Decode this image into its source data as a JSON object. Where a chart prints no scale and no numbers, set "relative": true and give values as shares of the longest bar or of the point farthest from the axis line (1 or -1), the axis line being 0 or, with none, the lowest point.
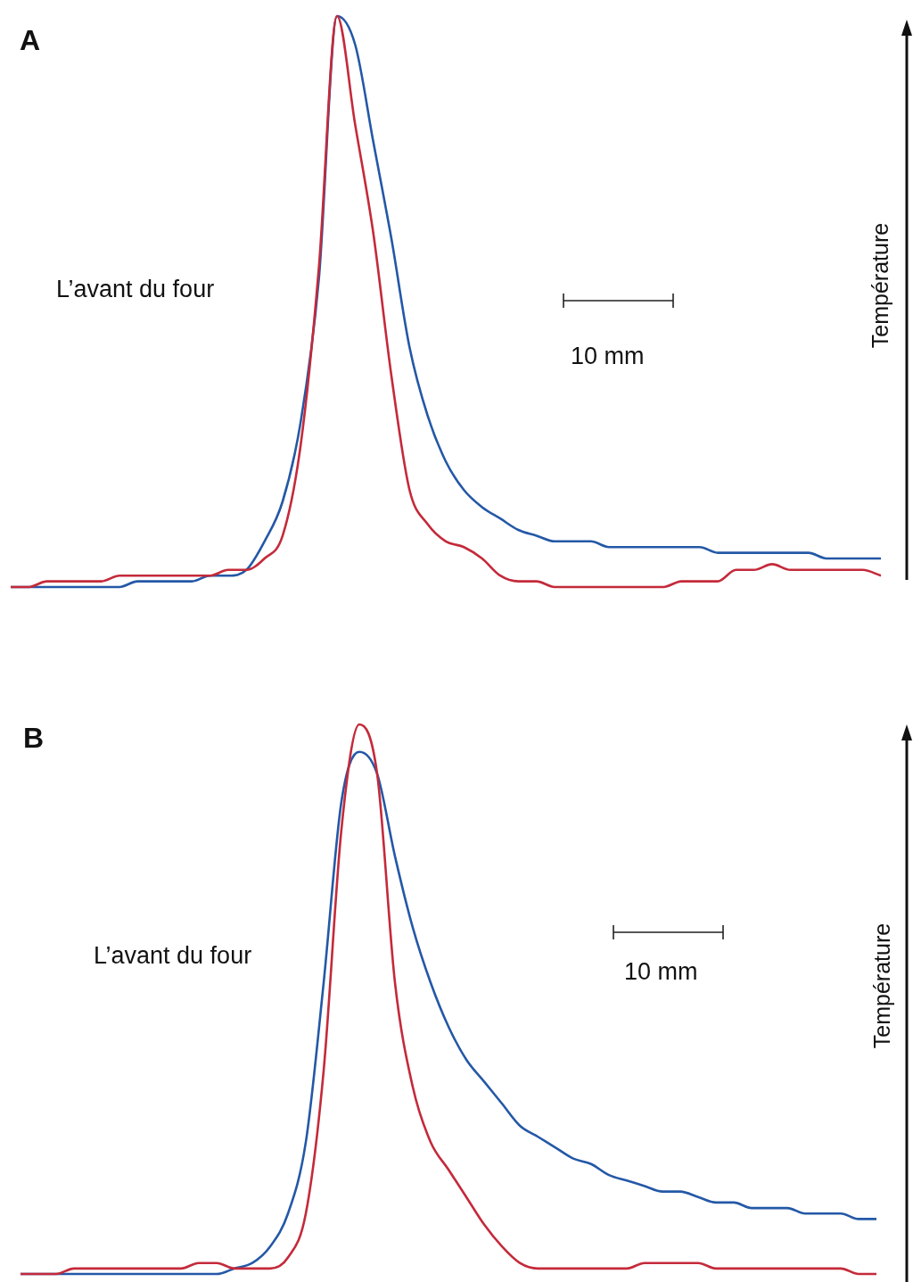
{
  "chart_data": [
    {
      "type": "line",
      "title": "A",
      "ylabel": "Température",
      "relative": true,
      "annotations": [
        "L’avant du four",
        "10 mm"
      ],
      "categories": [
        null,
        null,
        null,
        null,
        null,
        null,
        null,
        null,
        null,
        null,
        null,
        null,
        null,
        null,
        null,
        null,
        null,
        null,
        null,
        null,
        null,
        null,
        null,
        null,
        null,
        null,
        null,
        null,
        null,
        null,
        null,
        null,
        null,
        null,
        null,
        null,
        null,
        null,
        null,
        null,
        null,
        null,
        null,
        null,
        null,
        null,
        null,
        null,
        null
      ],
      "series": [
        {
          "color": "#2458a6",
          "values": [
            0,
            0,
            0,
            0,
            0,
            0,
            0,
            0.01,
            0.01,
            0.01,
            0.01,
            0.02,
            0.02,
            0.03,
            0.08,
            0.15,
            0.29,
            0.54,
            1,
            0.95,
            0.78,
            0.61,
            0.42,
            0.3,
            0.22,
            0.17,
            0.14,
            0.12,
            0.1,
            0.09,
            0.08,
            0.08,
            0.08,
            0.07,
            0.07,
            0.07,
            0.07,
            0.07,
            0.07,
            0.06,
            0.06,
            0.06,
            0.06,
            0.06,
            0.06,
            0.05,
            0.05,
            0.05,
            0.05
          ]
        },
        {
          "color": "#c42a3a",
          "values": [
            0,
            0,
            0.01,
            0.01,
            0.01,
            0.01,
            0.02,
            0.02,
            0.02,
            0.02,
            0.02,
            0.02,
            0.03,
            0.03,
            0.05,
            0.09,
            0.25,
            0.56,
            1,
            0.81,
            0.62,
            0.37,
            0.17,
            0.11,
            0.08,
            0.07,
            0.05,
            0.02,
            0.01,
            0.01,
            0,
            0,
            0,
            0,
            0,
            0,
            0,
            0.01,
            0.01,
            0.01,
            0.03,
            0.03,
            0.04,
            0.03,
            0.03,
            0.03,
            0.03,
            0.03,
            0.02
          ]
        }
      ]
    },
    {
      "type": "line",
      "title": "B",
      "ylabel": "Température",
      "relative": true,
      "annotations": [
        "L’avant du four",
        "10 mm"
      ],
      "categories": [
        null,
        null,
        null,
        null,
        null,
        null,
        null,
        null,
        null,
        null,
        null,
        null,
        null,
        null,
        null,
        null,
        null,
        null,
        null,
        null,
        null,
        null,
        null,
        null,
        null,
        null,
        null,
        null,
        null,
        null,
        null,
        null,
        null,
        null,
        null,
        null,
        null,
        null,
        null,
        null,
        null,
        null,
        null,
        null,
        null,
        null,
        null,
        null,
        null
      ],
      "series": [
        {
          "color": "#2458a6",
          "values": [
            0,
            0,
            0,
            0,
            0,
            0,
            0,
            0,
            0,
            0,
            0,
            0,
            0.01,
            0.02,
            0.05,
            0.11,
            0.24,
            0.53,
            0.86,
            0.95,
            0.91,
            0.76,
            0.63,
            0.53,
            0.45,
            0.39,
            0.35,
            0.31,
            0.27,
            0.25,
            0.23,
            0.21,
            0.2,
            0.18,
            0.17,
            0.16,
            0.15,
            0.15,
            0.14,
            0.13,
            0.13,
            0.12,
            0.12,
            0.12,
            0.11,
            0.11,
            0.11,
            0.1,
            0.1
          ]
        },
        {
          "color": "#c42a3a",
          "values": [
            0,
            0,
            0,
            0.01,
            0.01,
            0.01,
            0.01,
            0.01,
            0.01,
            0.01,
            0.02,
            0.02,
            0.01,
            0.01,
            0.01,
            0.03,
            0.11,
            0.37,
            0.81,
            1,
            0.91,
            0.53,
            0.34,
            0.24,
            0.19,
            0.14,
            0.09,
            0.05,
            0.02,
            0.01,
            0.01,
            0.01,
            0.01,
            0.01,
            0.01,
            0.02,
            0.02,
            0.02,
            0.02,
            0.01,
            0.01,
            0.01,
            0.01,
            0.01,
            0.01,
            0.01,
            0.01,
            0,
            0
          ]
        }
      ]
    }
  ]
}
